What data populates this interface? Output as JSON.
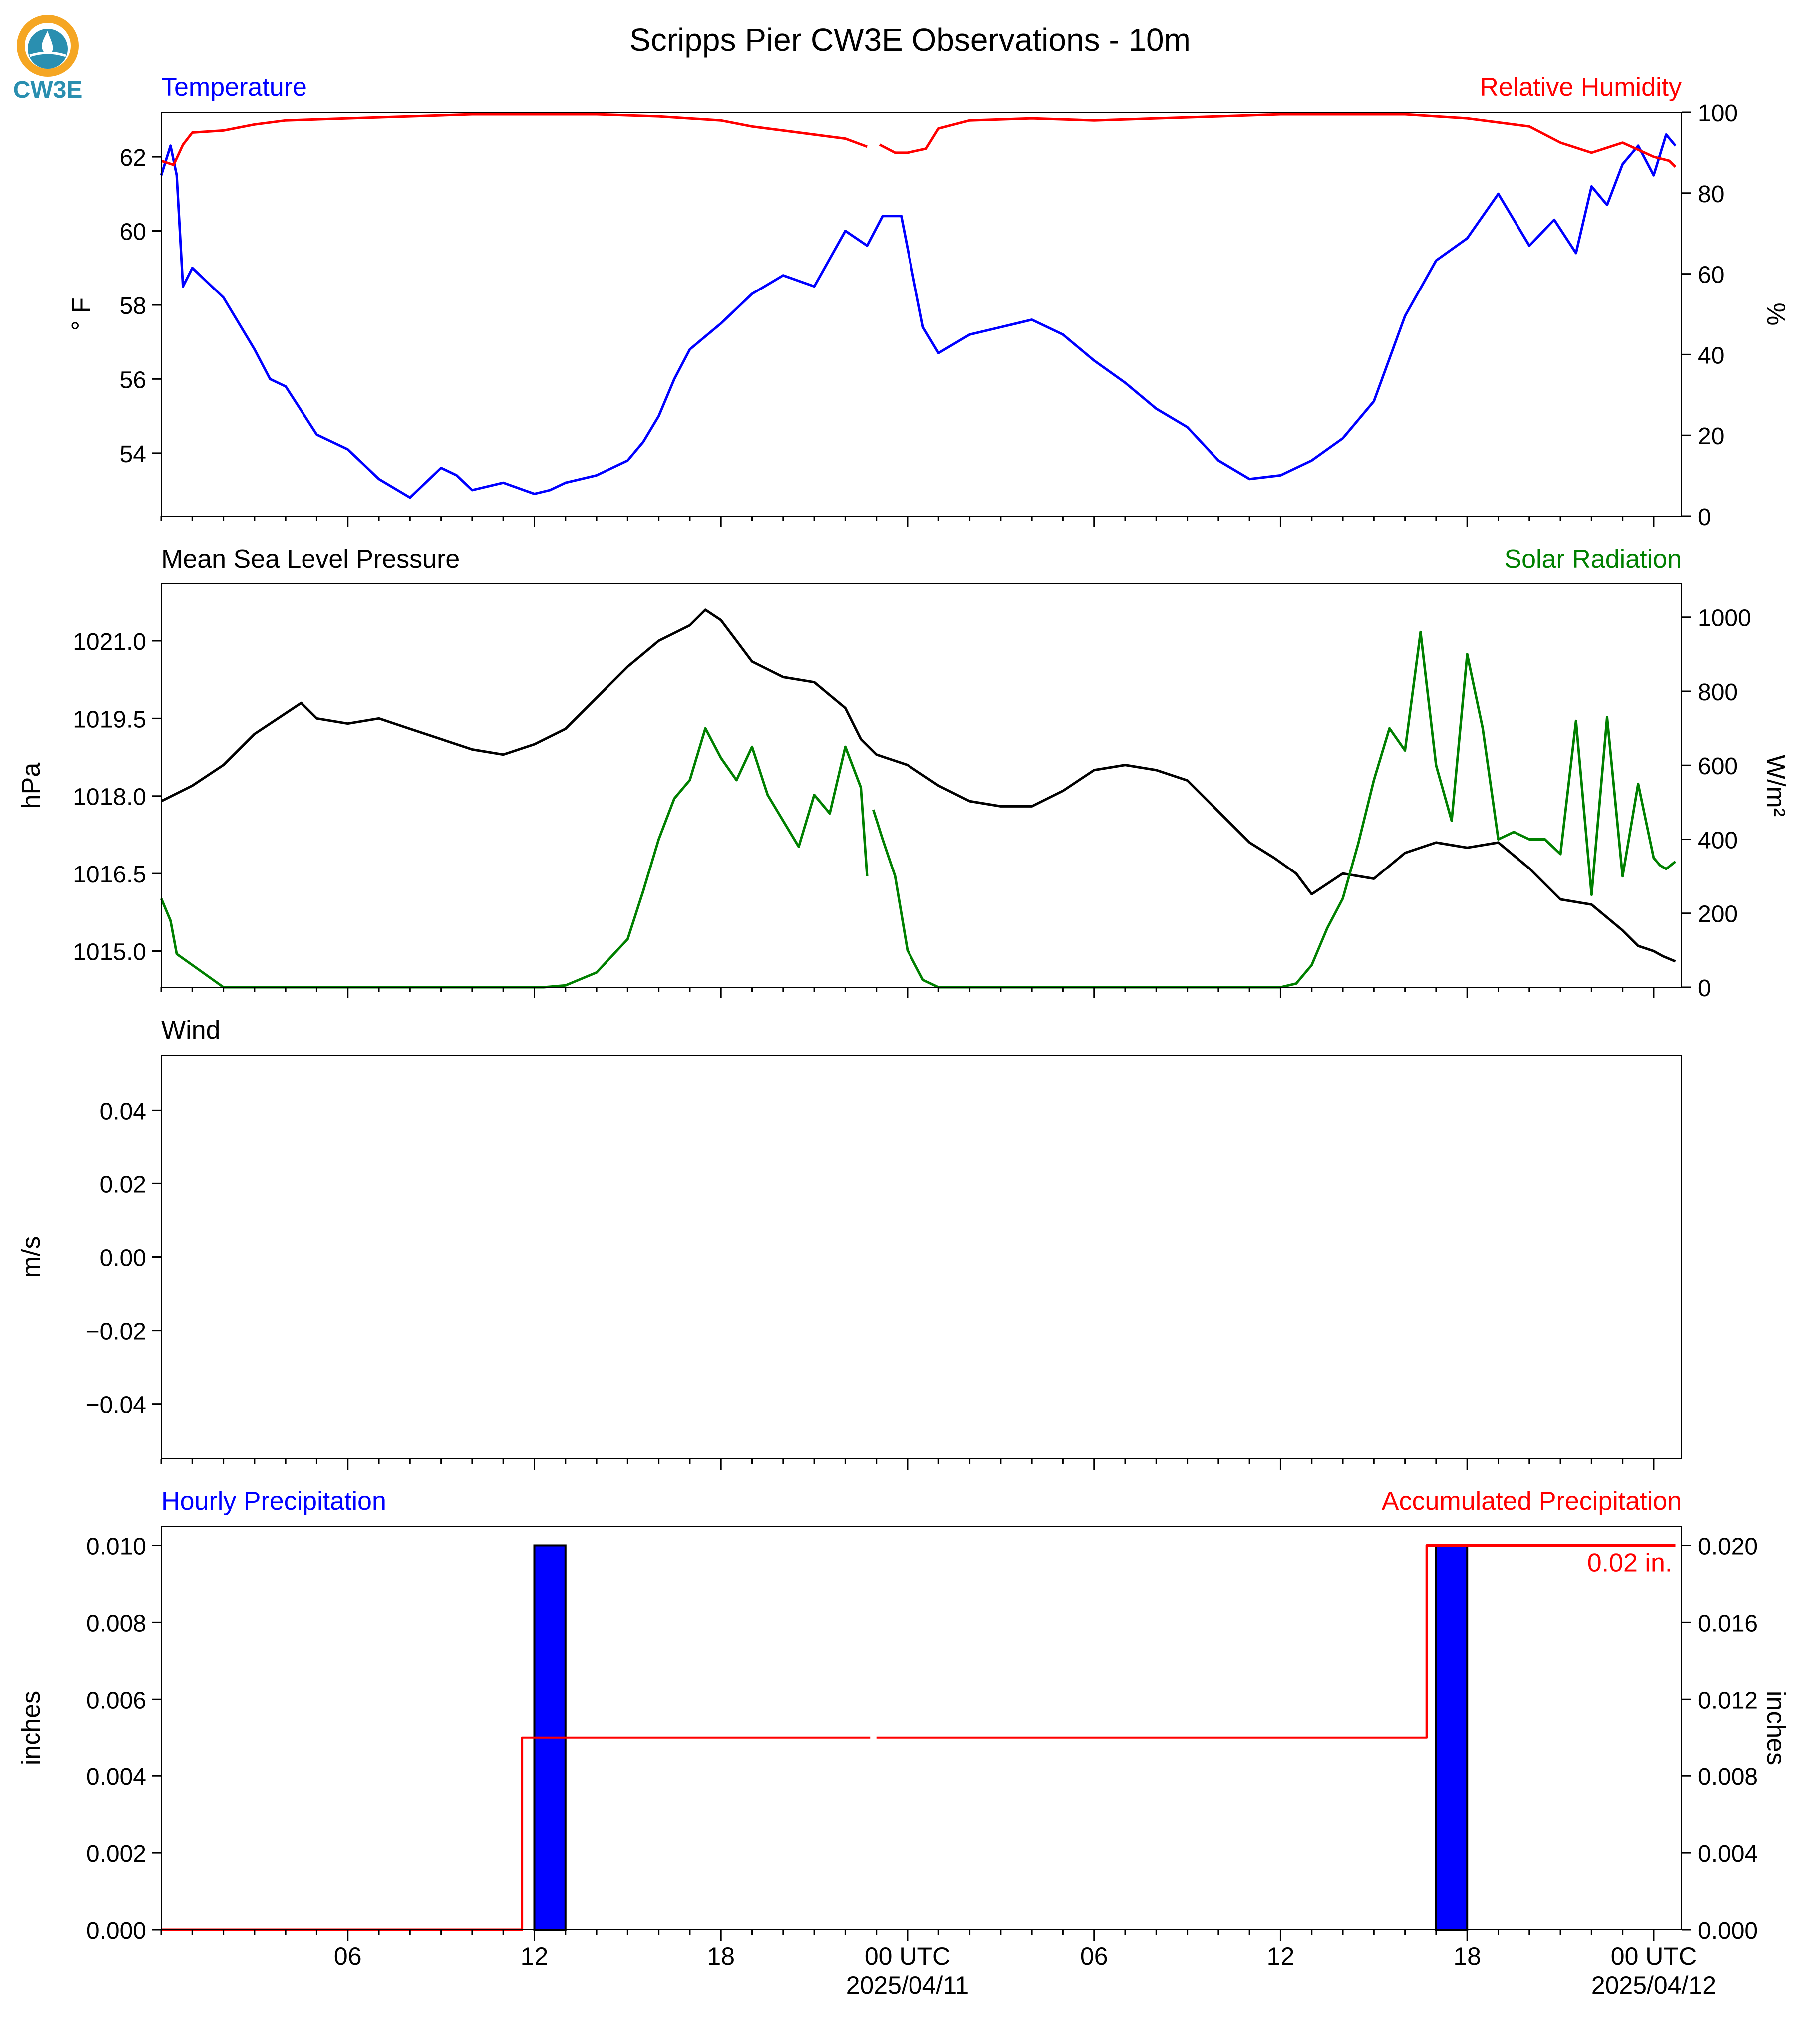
{
  "logo": {
    "text": "CW3E",
    "color": "#2a8fb0",
    "ring_color": "#f5a623"
  },
  "title": "Scripps Pier CW3E Observations - 10m",
  "x_axis": {
    "ticks": [
      {
        "h": 6,
        "label": "06"
      },
      {
        "h": 12,
        "label": "12"
      },
      {
        "h": 18,
        "label": "18"
      },
      {
        "h": 24,
        "label": "00 UTC",
        "date": "2025/04/11"
      },
      {
        "h": 30,
        "label": "06"
      },
      {
        "h": 36,
        "label": "12"
      },
      {
        "h": 42,
        "label": "18"
      },
      {
        "h": 48,
        "label": "00 UTC",
        "date": "2025/04/12"
      }
    ],
    "range": [
      0.0,
      48.9
    ]
  },
  "chart_data": [
    {
      "type": "line",
      "left_title": "Temperature",
      "right_title": "Relative Humidity",
      "ylabel_left": "° F",
      "ylabel_right": "%",
      "ylim_left": [
        52.3,
        63.2
      ],
      "ylim_right": [
        0,
        100
      ],
      "yticks_left": [
        "54",
        "56",
        "58",
        "60",
        "62"
      ],
      "yticks_right": [
        "0",
        "20",
        "40",
        "60",
        "80",
        "100"
      ],
      "series": [
        {
          "axis": "left",
          "color": "#0000ff",
          "x": [
            0.0,
            0.3,
            0.5,
            0.7,
            1.0,
            2.0,
            3.0,
            3.5,
            4.0,
            5.0,
            6.0,
            6.5,
            7.0,
            8.0,
            9.0,
            9.5,
            10.0,
            11.0,
            12.0,
            12.5,
            13.0,
            14.0,
            15.0,
            15.5,
            16.0,
            16.5,
            17.0,
            18.0,
            19.0,
            20.0,
            21.0,
            22.0,
            22.7,
            23.2,
            23.8,
            24.5,
            25.0,
            26.0,
            27.0,
            28.0,
            29.0,
            30.0,
            31.0,
            32.0,
            33.0,
            34.0,
            35.0,
            36.0,
            36.5,
            37.0,
            38.0,
            39.0,
            40.0,
            41.0,
            42.0,
            43.0,
            44.0,
            44.8,
            45.5,
            46.0,
            46.5,
            47.0,
            47.5,
            48.0,
            48.4,
            48.7
          ],
          "y": [
            61.5,
            62.3,
            61.5,
            58.5,
            59.0,
            58.2,
            56.8,
            56.0,
            55.8,
            54.5,
            54.1,
            53.7,
            53.3,
            52.8,
            53.6,
            53.4,
            53.0,
            53.2,
            52.9,
            53.0,
            53.2,
            53.4,
            53.8,
            54.3,
            55.0,
            56.0,
            56.8,
            57.5,
            58.3,
            58.8,
            58.5,
            60.0,
            59.6,
            60.4,
            60.4,
            57.4,
            56.7,
            57.2,
            57.4,
            57.6,
            57.2,
            56.5,
            55.9,
            55.2,
            54.7,
            53.8,
            53.3,
            53.4,
            53.6,
            53.8,
            54.4,
            55.4,
            57.7,
            59.2,
            59.8,
            61.0,
            59.6,
            60.3,
            59.4,
            61.2,
            60.7,
            61.8,
            62.3,
            61.5,
            62.6,
            62.3
          ]
        },
        {
          "axis": "right",
          "color": "#ff0000",
          "x": [
            0.0,
            0.4,
            0.7,
            1.0,
            2.0,
            3.0,
            4.0,
            6.0,
            8.0,
            10.0,
            12.0,
            14.0,
            16.0,
            18.0,
            19.0,
            20.0,
            21.0,
            22.0,
            22.7,
            null,
            23.1,
            23.6,
            24.0,
            24.6,
            25.0,
            26.0,
            28.0,
            30.0,
            32.0,
            34.0,
            36.0,
            38.0,
            40.0,
            42.0,
            44.0,
            45.0,
            46.0,
            47.0,
            48.0,
            48.5,
            48.7
          ],
          "y": [
            88,
            87,
            92,
            95,
            95.5,
            97,
            98,
            98.5,
            99,
            99.5,
            99.5,
            99.5,
            99,
            98,
            96.5,
            95.5,
            94.5,
            93.5,
            91.5,
            null,
            92,
            90,
            90,
            91,
            96,
            98,
            98.5,
            98,
            98.5,
            99,
            99.5,
            99.5,
            99.5,
            98.5,
            96.5,
            92.5,
            90,
            92.5,
            89,
            88,
            86.5
          ]
        }
      ]
    },
    {
      "type": "line",
      "left_title": "Mean Sea Level Pressure",
      "right_title": "Solar Radiation",
      "ylabel_left": "hPa",
      "ylabel_right": "W/m²",
      "ylim_left": [
        1014.3,
        1022.1
      ],
      "ylim_right": [
        0,
        1090
      ],
      "yticks_left": [
        "1015.0",
        "1016.5",
        "1018.0",
        "1019.5",
        "1021.0"
      ],
      "yticks_right": [
        "0",
        "200",
        "400",
        "600",
        "800",
        "1000"
      ],
      "series": [
        {
          "axis": "left",
          "color": "#000000",
          "x": [
            0.0,
            1.0,
            2.0,
            3.0,
            4.0,
            4.5,
            5.0,
            6.0,
            7.0,
            8.0,
            9.0,
            10.0,
            11.0,
            12.0,
            13.0,
            14.0,
            15.0,
            16.0,
            17.0,
            17.5,
            18.0,
            18.5,
            19.0,
            20.0,
            21.0,
            22.0,
            22.5,
            23.0,
            24.0,
            25.0,
            26.0,
            27.0,
            28.0,
            29.0,
            30.0,
            31.0,
            32.0,
            33.0,
            34.0,
            35.0,
            35.8,
            36.5,
            37.0,
            38.0,
            39.0,
            40.0,
            40.5,
            41.0,
            42.0,
            43.0,
            44.0,
            44.5,
            45.0,
            46.0,
            47.0,
            47.5,
            48.0,
            48.3,
            48.7
          ],
          "y": [
            1017.9,
            1018.2,
            1018.6,
            1019.2,
            1019.6,
            1019.8,
            1019.5,
            1019.4,
            1019.5,
            1019.3,
            1019.1,
            1018.9,
            1018.8,
            1019.0,
            1019.3,
            1019.9,
            1020.5,
            1021.0,
            1021.3,
            1021.6,
            1021.4,
            1021.0,
            1020.6,
            1020.3,
            1020.2,
            1019.7,
            1019.1,
            1018.8,
            1018.6,
            1018.2,
            1017.9,
            1017.8,
            1017.8,
            1018.1,
            1018.5,
            1018.6,
            1018.5,
            1018.3,
            1017.7,
            1017.1,
            1016.8,
            1016.5,
            1016.1,
            1016.5,
            1016.4,
            1016.9,
            1017.0,
            1017.1,
            1017.0,
            1017.1,
            1016.6,
            1016.3,
            1016.0,
            1015.9,
            1015.4,
            1015.1,
            1015.0,
            1014.9,
            1014.8
          ]
        },
        {
          "axis": "right",
          "color": "#008000",
          "x": [
            0.0,
            0.3,
            0.5,
            1.0,
            2.0,
            3.0,
            5.0,
            8.0,
            10.0,
            12.0,
            12.3,
            13.0,
            14.0,
            15.0,
            15.5,
            16.0,
            16.5,
            17.0,
            17.5,
            18.0,
            18.5,
            19.0,
            19.5,
            20.0,
            20.5,
            21.0,
            21.5,
            22.0,
            22.5,
            22.7,
            null,
            22.9,
            23.2,
            23.6,
            24.0,
            24.5,
            25.0,
            25.5,
            26.0,
            30.0,
            34.0,
            36.0,
            36.5,
            37.0,
            37.5,
            38.0,
            38.5,
            39.0,
            39.5,
            40.0,
            40.5,
            41.0,
            41.5,
            42.0,
            42.5,
            43.0,
            43.5,
            44.0,
            44.5,
            45.0,
            45.5,
            46.0,
            46.5,
            47.0,
            47.5,
            48.0,
            48.2,
            48.4,
            48.7
          ],
          "y": [
            240,
            180,
            90,
            60,
            0,
            0,
            0,
            0,
            0,
            0,
            0,
            5,
            40,
            130,
            260,
            400,
            510,
            560,
            700,
            620,
            560,
            650,
            520,
            450,
            380,
            520,
            470,
            650,
            540,
            300,
            null,
            480,
            400,
            300,
            100,
            20,
            0,
            0,
            0,
            0,
            0,
            0,
            10,
            60,
            160,
            240,
            390,
            560,
            700,
            640,
            960,
            600,
            450,
            900,
            700,
            400,
            420,
            400,
            400,
            360,
            720,
            250,
            730,
            300,
            550,
            350,
            330,
            320,
            340
          ]
        }
      ]
    },
    {
      "type": "line",
      "left_title": "Wind",
      "ylabel_left": "m/s",
      "ylim_left": [
        -0.055,
        0.055
      ],
      "yticks_left": [
        "−0.04",
        "−0.02",
        "0.00",
        "0.02",
        "0.04"
      ],
      "series": []
    },
    {
      "type": "bar",
      "left_title": "Hourly Precipitation",
      "right_title": "Accumulated Precipitation",
      "ylabel_left": "inches",
      "ylabel_right": "inches",
      "ylim_left": [
        0,
        0.0105
      ],
      "ylim_right": [
        0,
        0.021
      ],
      "yticks_left": [
        "0.000",
        "0.002",
        "0.004",
        "0.006",
        "0.008",
        "0.010"
      ],
      "yticks_right": [
        "0.000",
        "0.004",
        "0.008",
        "0.012",
        "0.016",
        "0.020"
      ],
      "bars": {
        "color": "#0000ff",
        "x_start": [
          12.0,
          41.0
        ],
        "x_end": [
          13.0,
          42.0
        ],
        "values": [
          0.01,
          0.01
        ]
      },
      "series": [
        {
          "axis": "right",
          "color": "#ff0000",
          "x": [
            0.0,
            11.6,
            11.6,
            22.8,
            null,
            23.0,
            40.7,
            40.7,
            48.0,
            48.7
          ],
          "y": [
            0.0,
            0.0,
            0.01,
            0.01,
            null,
            0.01,
            0.01,
            0.02,
            0.02,
            0.02
          ]
        }
      ],
      "annotation": "0.02 in."
    }
  ]
}
